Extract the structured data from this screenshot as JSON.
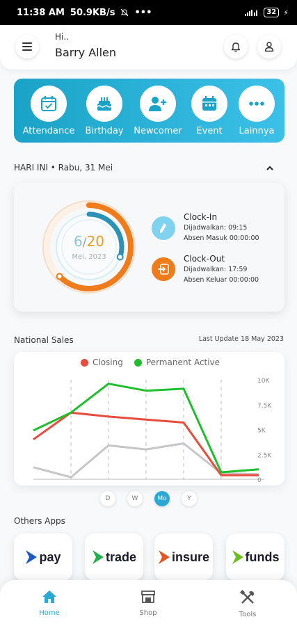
{
  "status_bar": {
    "time": "11:38 AM",
    "speed": "50.9KB/s",
    "battery": "32",
    "icons": [
      "silent-icon",
      "more-dots",
      "signal-icon",
      "battery-icon",
      "charging-icon"
    ]
  },
  "header": {
    "greeting": "Hi..",
    "user_name": "Barry Allen"
  },
  "quick_menu": {
    "items": [
      {
        "label": "Attendance",
        "icon": "calendar-check-icon"
      },
      {
        "label": "Birthday",
        "icon": "cake-icon"
      },
      {
        "label": "Newcomer",
        "icon": "add-user-icon"
      },
      {
        "label": "Event",
        "icon": "calendar-icon"
      },
      {
        "label": "Lainnya",
        "icon": "more-icon"
      }
    ],
    "colors": {
      "start": "#1aa3c7",
      "end": "#3cc0e8"
    }
  },
  "today": {
    "label": "HARI INI • Rabu, 31 Mei"
  },
  "attendance": {
    "present": "6",
    "separator": "/",
    "total": "20",
    "present_fraction": 0.3,
    "month": "Mei, 2023",
    "clock_in": {
      "title": "Clock-In",
      "scheduled": "Dijadwalkan: 09:15",
      "actual": "Absen Masuk 00:00:00",
      "color": "#7fd3ef"
    },
    "clock_out": {
      "title": "Clock-Out",
      "scheduled": "Dijadwalkan: 17:59",
      "actual": "Absen Keluar 00:00:00",
      "color": "#ef7b1a"
    }
  },
  "sales": {
    "title": "National Sales",
    "last_update": "Last Update 18 May 2023",
    "ranges": [
      {
        "label": "D",
        "active": false
      },
      {
        "label": "W",
        "active": false
      },
      {
        "label": "Mo",
        "active": true
      },
      {
        "label": "Y",
        "active": false
      }
    ]
  },
  "chart_data": {
    "type": "line",
    "y_ticks": [
      "10K",
      "7.5K",
      "5K",
      "2.5K",
      "0"
    ],
    "ylim": [
      0,
      10000
    ],
    "grid": "vertical-dashed",
    "legend_position": "top-center",
    "series": [
      {
        "name": "Closing",
        "color": "#e84c3d",
        "values": [
          4000,
          6700,
          6300,
          6000,
          5700,
          400,
          400
        ]
      },
      {
        "name": "Permanent Active",
        "color": "#1fbf2c",
        "values": [
          4900,
          6700,
          9600,
          8900,
          9100,
          700,
          1000
        ]
      },
      {
        "name": "",
        "color": "#c6c6c6",
        "values": [
          1200,
          200,
          3400,
          3000,
          3600,
          600,
          500
        ]
      }
    ]
  },
  "others": {
    "title": "Others Apps",
    "apps": [
      {
        "name": "pay",
        "color": "#1e5bbf"
      },
      {
        "name": "trade",
        "color": "#22b14c"
      },
      {
        "name": "insure",
        "color": "#e8531f"
      },
      {
        "name": "funds",
        "color": "#6bbf1e"
      }
    ]
  },
  "bottom_nav": {
    "items": [
      {
        "label": "Home",
        "icon": "home-icon",
        "active": true
      },
      {
        "label": "Shop",
        "icon": "shop-icon",
        "active": false
      },
      {
        "label": "Tools",
        "icon": "tools-icon",
        "active": false
      }
    ]
  }
}
